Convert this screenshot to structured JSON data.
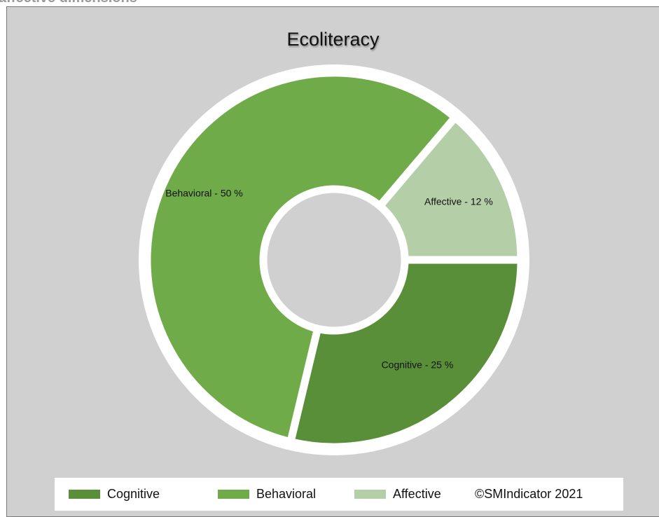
{
  "page_heading": "affective dimensions",
  "chart_data": {
    "type": "pie",
    "title": "Ecoliteracy",
    "hole": true,
    "slices": [
      {
        "label": "Cognitive",
        "value": 25,
        "data_label": "Cognitive - 25 %",
        "color": "#5a8f3a"
      },
      {
        "label": "Behavioral",
        "value": 50,
        "data_label": "Behavioral - 50 %",
        "color": "#6fab48"
      },
      {
        "label": "Affective",
        "value": 12,
        "data_label": "Affective - 12 %",
        "color": "#b4cfa7"
      }
    ],
    "legend": {
      "position": "bottom",
      "items": [
        {
          "label": "Cognitive",
          "color": "#5a8f3a"
        },
        {
          "label": "Behavioral",
          "color": "#6fab48"
        },
        {
          "label": "Affective",
          "color": "#b4cfa7"
        }
      ],
      "copyright": "©SMIndicator 2021"
    }
  },
  "colors": {
    "background": "#d0d0d0",
    "separator": "#ffffff"
  }
}
